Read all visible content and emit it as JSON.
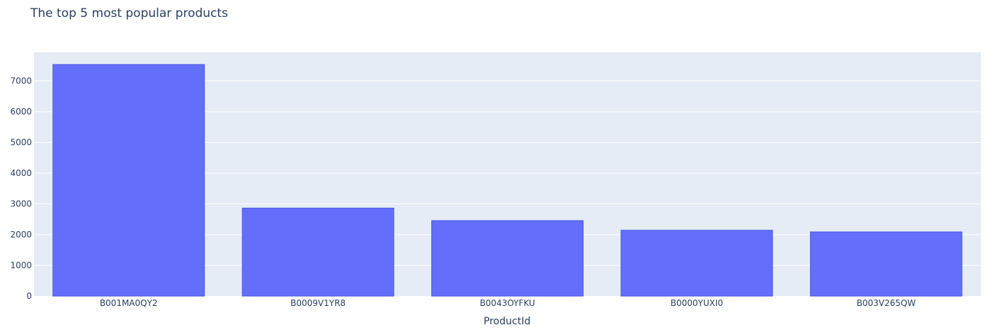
{
  "chart_data": {
    "type": "bar",
    "title": "The top 5 most popular products",
    "xlabel": "ProductId",
    "ylabel": "",
    "categories": [
      "B001MA0QY2",
      "B0009V1YR8",
      "B0043OYFKU",
      "B0000YUXI0",
      "B003V265QW"
    ],
    "values": [
      7533,
      2862,
      2455,
      2142,
      2088
    ],
    "ylim": [
      0,
      7930
    ],
    "yticks": [
      0,
      1000,
      2000,
      3000,
      4000,
      5000,
      6000,
      7000
    ],
    "grid": true,
    "legend": "none",
    "colors": {
      "bar_fill": "#636efa",
      "bar_stroke": "#4b57e0",
      "plot_bg": "#e5ecf6",
      "grid": "#ffffff",
      "text": "#2a3f5f"
    }
  }
}
